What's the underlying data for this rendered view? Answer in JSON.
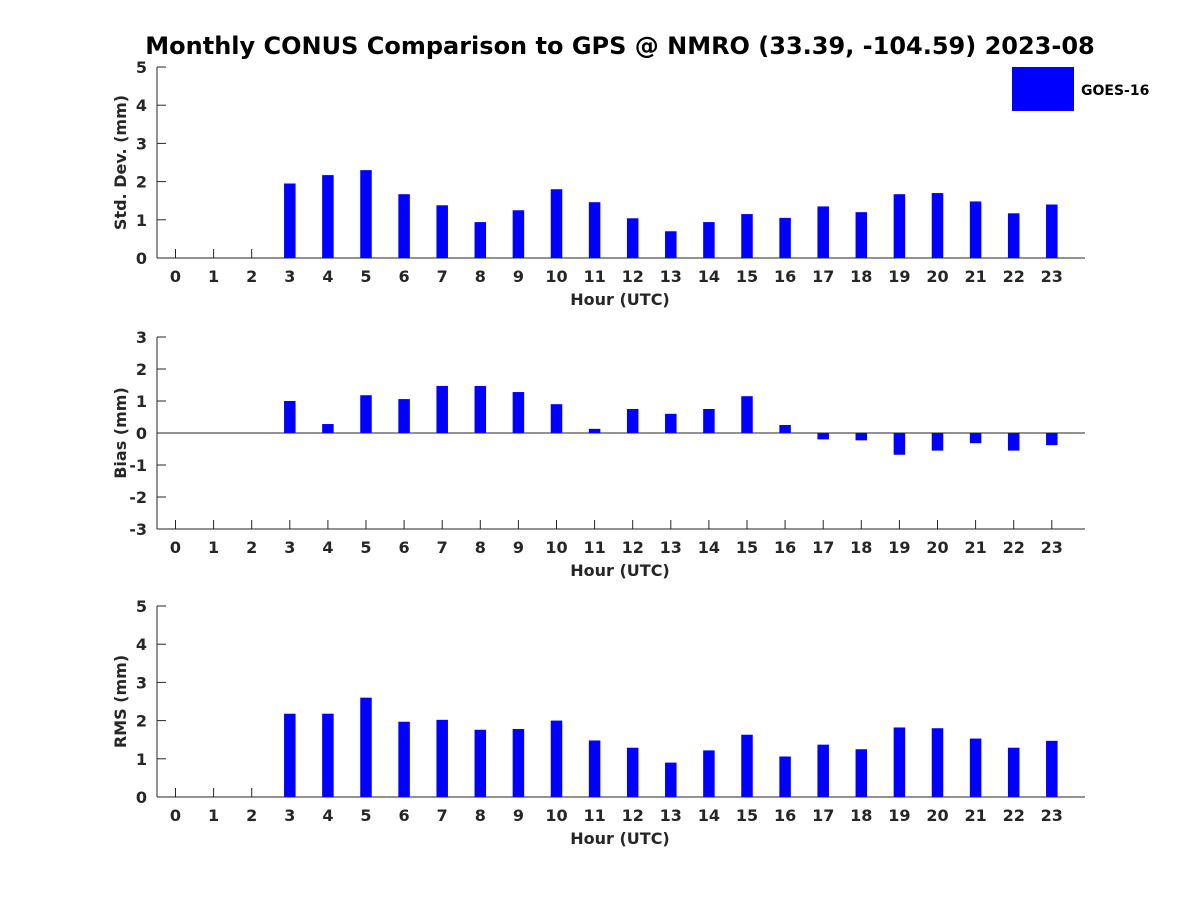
{
  "title": "Monthly CONUS Comparison to GPS @ NMRO (33.39, -104.59) 2023-08",
  "legend": {
    "label": "GOES-16",
    "placement": "top-right"
  },
  "chart_data": [
    {
      "type": "bar",
      "name": "stddev",
      "xlabel": "Hour (UTC)",
      "ylabel": "Std. Dev. (mm)",
      "ylim": [
        0,
        5
      ],
      "yticks": [
        0,
        1,
        2,
        3,
        4,
        5
      ],
      "categories": [
        "0",
        "1",
        "2",
        "3",
        "4",
        "5",
        "6",
        "7",
        "8",
        "9",
        "10",
        "11",
        "12",
        "13",
        "14",
        "15",
        "16",
        "17",
        "18",
        "19",
        "20",
        "21",
        "22",
        "23"
      ],
      "series": [
        {
          "name": "GOES-16",
          "color": "#0000ff",
          "values": [
            null,
            null,
            null,
            1.95,
            2.17,
            2.3,
            1.67,
            1.38,
            0.94,
            1.25,
            1.8,
            1.46,
            1.04,
            0.7,
            0.94,
            1.15,
            1.05,
            1.35,
            1.2,
            1.67,
            1.7,
            1.48,
            1.17,
            1.4
          ]
        }
      ]
    },
    {
      "type": "bar",
      "name": "bias",
      "xlabel": "Hour (UTC)",
      "ylabel": "Bias (mm)",
      "ylim": [
        -3,
        3
      ],
      "yticks": [
        -3,
        -2,
        -1,
        0,
        1,
        2,
        3
      ],
      "zero_line": true,
      "categories": [
        "0",
        "1",
        "2",
        "3",
        "4",
        "5",
        "6",
        "7",
        "8",
        "9",
        "10",
        "11",
        "12",
        "13",
        "14",
        "15",
        "16",
        "17",
        "18",
        "19",
        "20",
        "21",
        "22",
        "23"
      ],
      "series": [
        {
          "name": "GOES-16",
          "color": "#0000ff",
          "values": [
            null,
            null,
            null,
            1.0,
            0.28,
            1.18,
            1.06,
            1.47,
            1.47,
            1.28,
            0.9,
            0.13,
            0.75,
            0.6,
            0.75,
            1.15,
            0.25,
            -0.2,
            -0.23,
            -0.68,
            -0.55,
            -0.32,
            -0.55,
            -0.38
          ]
        }
      ]
    },
    {
      "type": "bar",
      "name": "rms",
      "xlabel": "Hour (UTC)",
      "ylabel": "RMS (mm)",
      "ylim": [
        0,
        5
      ],
      "yticks": [
        0,
        1,
        2,
        3,
        4,
        5
      ],
      "categories": [
        "0",
        "1",
        "2",
        "3",
        "4",
        "5",
        "6",
        "7",
        "8",
        "9",
        "10",
        "11",
        "12",
        "13",
        "14",
        "15",
        "16",
        "17",
        "18",
        "19",
        "20",
        "21",
        "22",
        "23"
      ],
      "series": [
        {
          "name": "GOES-16",
          "color": "#0000ff",
          "values": [
            null,
            null,
            null,
            2.18,
            2.18,
            2.6,
            1.97,
            2.02,
            1.76,
            1.78,
            2.0,
            1.48,
            1.29,
            0.9,
            1.22,
            1.63,
            1.06,
            1.37,
            1.25,
            1.82,
            1.8,
            1.53,
            1.29,
            1.47
          ]
        }
      ]
    }
  ]
}
